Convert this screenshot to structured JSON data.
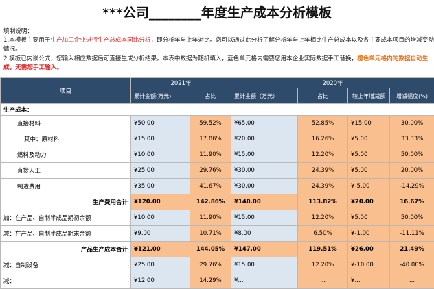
{
  "title": "***公司________年度生产成本分析模板",
  "notes": {
    "heading": "填制说明：",
    "line1_a": "1.本模板主要用于",
    "line1_red": "生产加工企业进行生产总成本同比分析",
    "line1_b": "，即分析年与上年对比。您可以通过此分析了解分析年与上年相比生产总成本以及各主要成本项目的增减变动",
    "line1_c": "情况。",
    "line2_a": "2.模板已内嵌公式，您输入相应数据后可直接生成分析结果。本表中数据为随机填入，蓝色单元格内需要您用本企业实际数据手工替换，",
    "line2_orange": "橙色单元格内的数据自动生",
    "line2_red": "成，无需您手工输入。"
  },
  "table": {
    "col_item": "项目",
    "year1": "2021年",
    "year2": "2020年",
    "sub": [
      "累计金额(万元)",
      "占比",
      "累计金额（万元）",
      "占比",
      "较上年增减额",
      "增减幅度(%)"
    ],
    "section": "生产成本：",
    "rows": [
      {
        "label": "直接材料",
        "v1": "¥50.00",
        "p1": "59.52%",
        "v2": "¥65.00",
        "p2": "52.85%",
        "d": "¥15.00",
        "r": "30.00%"
      },
      {
        "label": "其中：原材料",
        "v1": "¥15.00",
        "p1": "17.86%",
        "v2": "¥20.00",
        "p2": "16.26%",
        "d": "¥5.00",
        "r": "33.33%"
      },
      {
        "label": "燃料及动力",
        "v1": "¥10.00",
        "p1": "11.90%",
        "v2": "¥15.00",
        "p2": "12.20%",
        "d": "¥5.00",
        "r": "50.00%"
      },
      {
        "label": "直接人工",
        "v1": "¥25.00",
        "p1": "29.76%",
        "v2": "¥30.00",
        "p2": "24.39%",
        "d": "¥5.00",
        "r": "20.00%"
      },
      {
        "label": "制造费用",
        "v1": "¥35.00",
        "p1": "41.67%",
        "v2": "¥30.00",
        "p2": "24.39%",
        "d": "¥-5.00",
        "r": "-14.29%"
      }
    ],
    "total1": {
      "label": "生产费用合计",
      "v1": "¥120.00",
      "p1": "142.86%",
      "v2": "¥140.00",
      "p2": "113.82%",
      "d": "¥20.00",
      "r": "16.67%"
    },
    "rows2": [
      {
        "label": "加：在产品、自制半成品期初余额",
        "v1": "¥10.00",
        "p1": "11.90%",
        "v2": "¥15.00",
        "p2": "12.20%",
        "d": "¥5.00",
        "r": "50.00%"
      },
      {
        "label": "减：在产品、自制半成品期末余额",
        "v1": "¥9.00",
        "p1": "10.71%",
        "v2": "¥8.00",
        "p2": "6.50%",
        "d": "¥-1.00",
        "r": "-11.11%"
      }
    ],
    "total2": {
      "label": "产品生产成本合计",
      "v1": "¥121.00",
      "p1": "144.05%",
      "v2": "¥147.00",
      "p2": "119.51%",
      "d": "¥26.00",
      "r": "21.49%"
    },
    "rows3": [
      {
        "label": "减：自制设备",
        "v1": "¥25.00",
        "p1": "29.76%",
        "v2": "¥15.00",
        "p2": "12.20%",
        "d": "¥-10.00",
        "r": "-40.00%"
      },
      {
        "label": "减：",
        "v1": "¥12.00",
        "p1": "14.29%",
        "v2": "¥...",
        "p2": "...",
        "d": "¥...",
        "r": "..."
      }
    ]
  }
}
